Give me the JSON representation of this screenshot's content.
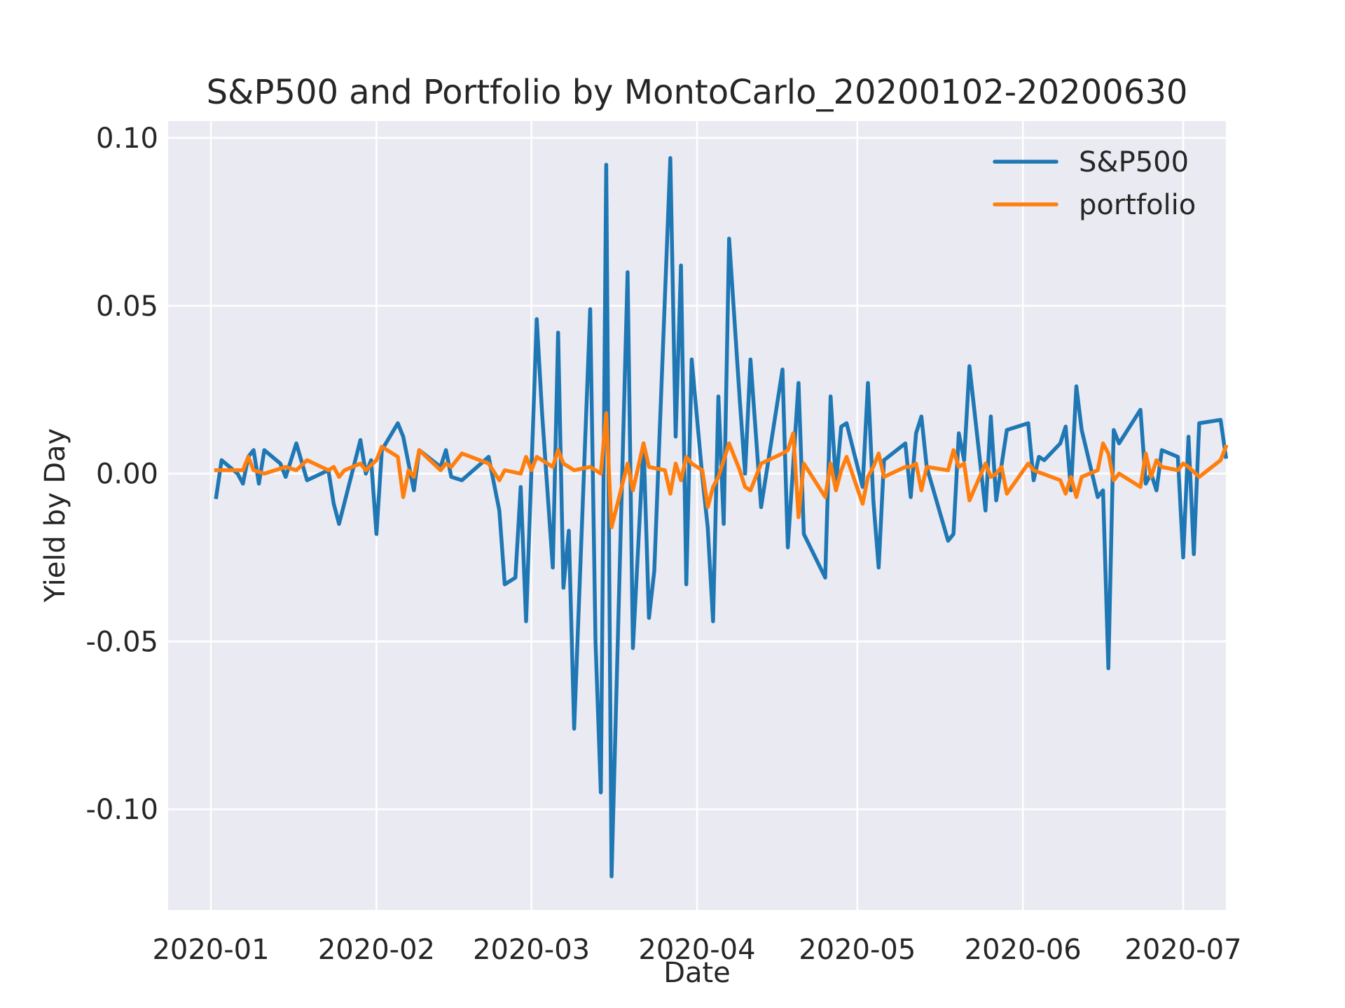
{
  "chart_data": {
    "type": "line",
    "title": "S&P500 and Portfolio by MontoCarlo_20200102-20200630",
    "xlabel": "Date",
    "ylabel": "Yield by Day",
    "xlim": [
      "2019-12-24",
      "2020-07-09"
    ],
    "ylim": [
      -0.13,
      0.105
    ],
    "x_ticks": [
      {
        "date": "2020-01-01",
        "label": "2020-01"
      },
      {
        "date": "2020-02-01",
        "label": "2020-02"
      },
      {
        "date": "2020-03-01",
        "label": "2020-03"
      },
      {
        "date": "2020-04-01",
        "label": "2020-04"
      },
      {
        "date": "2020-05-01",
        "label": "2020-05"
      },
      {
        "date": "2020-06-01",
        "label": "2020-06"
      },
      {
        "date": "2020-07-01",
        "label": "2020-07"
      }
    ],
    "y_ticks": [
      {
        "value": 0.1,
        "label": "0.10"
      },
      {
        "value": 0.05,
        "label": "0.05"
      },
      {
        "value": 0.0,
        "label": "0.00"
      },
      {
        "value": -0.05,
        "label": "-0.05"
      },
      {
        "value": -0.1,
        "label": "-0.10"
      }
    ],
    "grid": true,
    "legend": "top-right",
    "series": [
      {
        "name": "S&P500",
        "color": "#1f77b4",
        "points": [
          [
            "2020-01-02",
            -0.007
          ],
          [
            "2020-01-03",
            0.004
          ],
          [
            "2020-01-06",
            0.0
          ],
          [
            "2020-01-07",
            -0.003
          ],
          [
            "2020-01-08",
            0.005
          ],
          [
            "2020-01-09",
            0.007
          ],
          [
            "2020-01-10",
            -0.003
          ],
          [
            "2020-01-11",
            0.007
          ],
          [
            "2020-01-14",
            0.003
          ],
          [
            "2020-01-15",
            -0.001
          ],
          [
            "2020-01-17",
            0.009
          ],
          [
            "2020-01-19",
            -0.002
          ],
          [
            "2020-01-23",
            0.001
          ],
          [
            "2020-01-24",
            -0.009
          ],
          [
            "2020-01-25",
            -0.015
          ],
          [
            "2020-01-29",
            0.01
          ],
          [
            "2020-01-30",
            0.0
          ],
          [
            "2020-01-31",
            0.004
          ],
          [
            "2020-02-01",
            -0.018
          ],
          [
            "2020-02-02",
            0.007
          ],
          [
            "2020-02-05",
            0.015
          ],
          [
            "2020-02-06",
            0.011
          ],
          [
            "2020-02-08",
            -0.005
          ],
          [
            "2020-02-09",
            0.007
          ],
          [
            "2020-02-13",
            0.002
          ],
          [
            "2020-02-14",
            0.007
          ],
          [
            "2020-02-15",
            -0.001
          ],
          [
            "2020-02-17",
            -0.002
          ],
          [
            "2020-02-22",
            0.005
          ],
          [
            "2020-02-24",
            -0.011
          ],
          [
            "2020-02-25",
            -0.033
          ],
          [
            "2020-02-27",
            -0.031
          ],
          [
            "2020-02-28",
            -0.004
          ],
          [
            "2020-02-29",
            -0.044
          ],
          [
            "2020-03-02",
            0.046
          ],
          [
            "2020-03-03",
            0.018
          ],
          [
            "2020-03-05",
            -0.028
          ],
          [
            "2020-03-06",
            0.042
          ],
          [
            "2020-03-07",
            -0.034
          ],
          [
            "2020-03-08",
            -0.017
          ],
          [
            "2020-03-09",
            -0.076
          ],
          [
            "2020-03-12",
            0.049
          ],
          [
            "2020-03-13",
            -0.05
          ],
          [
            "2020-03-14",
            -0.095
          ],
          [
            "2020-03-15",
            0.092
          ],
          [
            "2020-03-16",
            -0.12
          ],
          [
            "2020-03-17",
            -0.06
          ],
          [
            "2020-03-19",
            0.06
          ],
          [
            "2020-03-20",
            -0.052
          ],
          [
            "2020-03-22",
            0.009
          ],
          [
            "2020-03-23",
            -0.043
          ],
          [
            "2020-03-24",
            -0.029
          ],
          [
            "2020-03-27",
            0.094
          ],
          [
            "2020-03-28",
            0.011
          ],
          [
            "2020-03-29",
            0.062
          ],
          [
            "2020-03-30",
            -0.033
          ],
          [
            "2020-03-31",
            0.034
          ],
          [
            "2020-04-02",
            -0.001
          ],
          [
            "2020-04-03",
            -0.016
          ],
          [
            "2020-04-04",
            -0.044
          ],
          [
            "2020-04-05",
            0.023
          ],
          [
            "2020-04-06",
            -0.015
          ],
          [
            "2020-04-07",
            0.07
          ],
          [
            "2020-04-09",
            0.022
          ],
          [
            "2020-04-10",
            0.0
          ],
          [
            "2020-04-11",
            0.034
          ],
          [
            "2020-04-13",
            -0.01
          ],
          [
            "2020-04-17",
            0.031
          ],
          [
            "2020-04-18",
            -0.022
          ],
          [
            "2020-04-20",
            0.027
          ],
          [
            "2020-04-21",
            -0.018
          ],
          [
            "2020-04-25",
            -0.031
          ],
          [
            "2020-04-26",
            0.023
          ],
          [
            "2020-04-27",
            -0.003
          ],
          [
            "2020-04-28",
            0.014
          ],
          [
            "2020-04-29",
            0.015
          ],
          [
            "2020-05-02",
            -0.004
          ],
          [
            "2020-05-03",
            0.027
          ],
          [
            "2020-05-04",
            -0.008
          ],
          [
            "2020-05-05",
            -0.028
          ],
          [
            "2020-05-06",
            0.004
          ],
          [
            "2020-05-10",
            0.009
          ],
          [
            "2020-05-11",
            -0.007
          ],
          [
            "2020-05-12",
            0.012
          ],
          [
            "2020-05-13",
            0.017
          ],
          [
            "2020-05-14",
            0.002
          ],
          [
            "2020-05-18",
            -0.02
          ],
          [
            "2020-05-19",
            -0.018
          ],
          [
            "2020-05-20",
            0.012
          ],
          [
            "2020-05-21",
            0.004
          ],
          [
            "2020-05-22",
            0.032
          ],
          [
            "2020-05-25",
            -0.011
          ],
          [
            "2020-05-26",
            0.017
          ],
          [
            "2020-05-27",
            -0.008
          ],
          [
            "2020-05-29",
            0.013
          ],
          [
            "2020-06-02",
            0.015
          ],
          [
            "2020-06-03",
            -0.002
          ],
          [
            "2020-06-04",
            0.005
          ],
          [
            "2020-06-05",
            0.004
          ],
          [
            "2020-06-08",
            0.009
          ],
          [
            "2020-06-09",
            0.014
          ],
          [
            "2020-06-10",
            -0.005
          ],
          [
            "2020-06-11",
            0.026
          ],
          [
            "2020-06-12",
            0.013
          ],
          [
            "2020-06-15",
            -0.007
          ],
          [
            "2020-06-16",
            -0.005
          ],
          [
            "2020-06-17",
            -0.058
          ],
          [
            "2020-06-18",
            0.013
          ],
          [
            "2020-06-19",
            0.009
          ],
          [
            "2020-06-23",
            0.019
          ],
          [
            "2020-06-24",
            -0.003
          ],
          [
            "2020-06-25",
            0.0
          ],
          [
            "2020-06-26",
            -0.005
          ],
          [
            "2020-06-27",
            0.007
          ],
          [
            "2020-06-30",
            0.005
          ],
          [
            "2020-07-01",
            -0.025
          ],
          [
            "2020-07-02",
            0.011
          ],
          [
            "2020-07-03",
            -0.024
          ],
          [
            "2020-07-04",
            0.015
          ],
          [
            "2020-07-08",
            0.016
          ],
          [
            "2020-07-09",
            0.005
          ]
        ]
      },
      {
        "name": "portfolio",
        "color": "#ff7f0e",
        "points": [
          [
            "2020-01-02",
            0.001
          ],
          [
            "2020-01-03",
            0.001
          ],
          [
            "2020-01-06",
            0.001
          ],
          [
            "2020-01-07",
            0.001
          ],
          [
            "2020-01-08",
            0.005
          ],
          [
            "2020-01-09",
            0.001
          ],
          [
            "2020-01-11",
            0.0
          ],
          [
            "2020-01-15",
            0.002
          ],
          [
            "2020-01-17",
            0.001
          ],
          [
            "2020-01-19",
            0.004
          ],
          [
            "2020-01-23",
            0.001
          ],
          [
            "2020-01-24",
            0.002
          ],
          [
            "2020-01-25",
            -0.001
          ],
          [
            "2020-01-26",
            0.001
          ],
          [
            "2020-01-29",
            0.003
          ],
          [
            "2020-01-30",
            0.001
          ],
          [
            "2020-02-01",
            0.004
          ],
          [
            "2020-02-02",
            0.008
          ],
          [
            "2020-02-05",
            0.005
          ],
          [
            "2020-02-06",
            -0.007
          ],
          [
            "2020-02-07",
            0.001
          ],
          [
            "2020-02-08",
            -0.001
          ],
          [
            "2020-02-09",
            0.007
          ],
          [
            "2020-02-13",
            0.001
          ],
          [
            "2020-02-14",
            0.003
          ],
          [
            "2020-02-15",
            0.002
          ],
          [
            "2020-02-16",
            0.004
          ],
          [
            "2020-02-17",
            0.006
          ],
          [
            "2020-02-22",
            0.003
          ],
          [
            "2020-02-24",
            -0.002
          ],
          [
            "2020-02-25",
            0.001
          ],
          [
            "2020-02-28",
            0.0
          ],
          [
            "2020-02-29",
            0.005
          ],
          [
            "2020-03-01",
            0.001
          ],
          [
            "2020-03-02",
            0.005
          ],
          [
            "2020-03-05",
            0.002
          ],
          [
            "2020-03-06",
            0.007
          ],
          [
            "2020-03-07",
            0.003
          ],
          [
            "2020-03-08",
            0.002
          ],
          [
            "2020-03-09",
            0.001
          ],
          [
            "2020-03-12",
            0.002
          ],
          [
            "2020-03-13",
            0.001
          ],
          [
            "2020-03-14",
            0.0
          ],
          [
            "2020-03-15",
            0.018
          ],
          [
            "2020-03-16",
            -0.016
          ],
          [
            "2020-03-19",
            0.003
          ],
          [
            "2020-03-20",
            -0.005
          ],
          [
            "2020-03-22",
            0.009
          ],
          [
            "2020-03-23",
            0.002
          ],
          [
            "2020-03-26",
            0.001
          ],
          [
            "2020-03-27",
            -0.006
          ],
          [
            "2020-03-28",
            0.003
          ],
          [
            "2020-03-29",
            -0.002
          ],
          [
            "2020-03-30",
            0.005
          ],
          [
            "2020-03-31",
            0.003
          ],
          [
            "2020-04-02",
            0.001
          ],
          [
            "2020-04-03",
            -0.01
          ],
          [
            "2020-04-04",
            -0.004
          ],
          [
            "2020-04-05",
            -0.001
          ],
          [
            "2020-04-07",
            0.009
          ],
          [
            "2020-04-08",
            0.005
          ],
          [
            "2020-04-09",
            0.001
          ],
          [
            "2020-04-10",
            -0.004
          ],
          [
            "2020-04-11",
            -0.005
          ],
          [
            "2020-04-13",
            0.003
          ],
          [
            "2020-04-17",
            0.006
          ],
          [
            "2020-04-18",
            0.007
          ],
          [
            "2020-04-19",
            0.012
          ],
          [
            "2020-04-20",
            -0.013
          ],
          [
            "2020-04-21",
            0.003
          ],
          [
            "2020-04-25",
            -0.007
          ],
          [
            "2020-04-26",
            0.003
          ],
          [
            "2020-04-27",
            -0.005
          ],
          [
            "2020-04-28",
            0.001
          ],
          [
            "2020-04-29",
            0.005
          ],
          [
            "2020-05-02",
            -0.009
          ],
          [
            "2020-05-03",
            -0.001
          ],
          [
            "2020-05-04",
            0.002
          ],
          [
            "2020-05-05",
            0.006
          ],
          [
            "2020-05-06",
            -0.001
          ],
          [
            "2020-05-10",
            0.002
          ],
          [
            "2020-05-11",
            0.002
          ],
          [
            "2020-05-12",
            0.003
          ],
          [
            "2020-05-13",
            -0.005
          ],
          [
            "2020-05-14",
            0.002
          ],
          [
            "2020-05-18",
            0.001
          ],
          [
            "2020-05-19",
            0.007
          ],
          [
            "2020-05-20",
            0.002
          ],
          [
            "2020-05-21",
            0.003
          ],
          [
            "2020-05-22",
            -0.008
          ],
          [
            "2020-05-25",
            0.003
          ],
          [
            "2020-05-26",
            -0.001
          ],
          [
            "2020-05-27",
            0.0
          ],
          [
            "2020-05-28",
            0.002
          ],
          [
            "2020-05-29",
            -0.006
          ],
          [
            "2020-06-02",
            0.003
          ],
          [
            "2020-06-03",
            0.001
          ],
          [
            "2020-06-08",
            -0.002
          ],
          [
            "2020-06-09",
            -0.006
          ],
          [
            "2020-06-10",
            -0.001
          ],
          [
            "2020-06-11",
            -0.007
          ],
          [
            "2020-06-12",
            -0.001
          ],
          [
            "2020-06-15",
            0.001
          ],
          [
            "2020-06-16",
            0.009
          ],
          [
            "2020-06-17",
            0.006
          ],
          [
            "2020-06-18",
            -0.002
          ],
          [
            "2020-06-19",
            0.0
          ],
          [
            "2020-06-23",
            -0.004
          ],
          [
            "2020-06-24",
            0.006
          ],
          [
            "2020-06-25",
            -0.001
          ],
          [
            "2020-06-26",
            0.004
          ],
          [
            "2020-06-27",
            0.002
          ],
          [
            "2020-06-30",
            0.001
          ],
          [
            "2020-07-01",
            0.003
          ],
          [
            "2020-07-02",
            0.002
          ],
          [
            "2020-07-04",
            -0.001
          ],
          [
            "2020-07-08",
            0.004
          ],
          [
            "2020-07-09",
            0.008
          ]
        ]
      }
    ]
  }
}
